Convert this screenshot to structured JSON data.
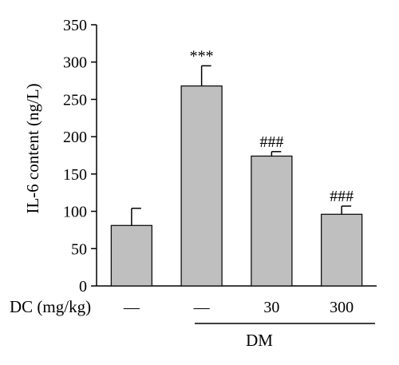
{
  "chart_data": {
    "type": "bar",
    "ylabel": "IL-6 content (ng/L)",
    "ylim": [
      0,
      350
    ],
    "yticks": [
      0,
      50,
      100,
      150,
      200,
      250,
      300,
      350
    ],
    "grid": false,
    "legend": "none",
    "bar_color": "#bfbfbf",
    "categories": [
      "—",
      "—",
      "30",
      "300"
    ],
    "values": [
      81,
      268,
      174,
      96
    ],
    "error_upper": [
      23,
      27,
      6,
      11
    ],
    "annotations": [
      "",
      "***",
      "###",
      "###"
    ],
    "dose_label": "DC (mg/kg)",
    "group_label": "DM"
  }
}
